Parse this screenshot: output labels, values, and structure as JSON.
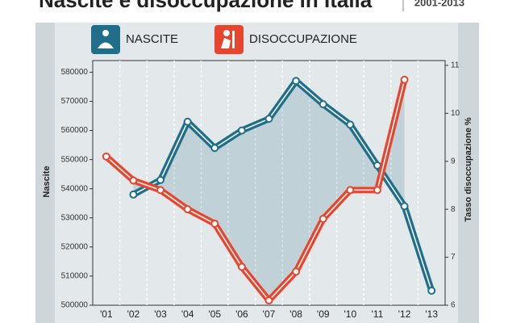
{
  "chart_data": {
    "type": "line",
    "title": "Nascite e disoccupazione in Italia",
    "subtitle": "2001-2013",
    "y_label": "Nascite",
    "y2_label": "Tasso disoccupazione %",
    "categories": [
      "'01",
      "'02",
      "'03",
      "'04",
      "'05",
      "'06",
      "'07",
      "'08",
      "'09",
      "'10",
      "'11",
      "'12",
      "'13"
    ],
    "series": [
      {
        "name": "NASCITE",
        "color": "#1f6f8b",
        "values": [
          null,
          538000,
          543000,
          563000,
          554000,
          560000,
          564000,
          577000,
          569000,
          562000,
          548000,
          534000,
          505000
        ]
      },
      {
        "name": "DISOCCUPAZIONE",
        "color": "#e8452e",
        "axis": "y2",
        "values": [
          9.1,
          8.6,
          8.4,
          8.0,
          7.7,
          6.8,
          6.1,
          6.7,
          7.8,
          8.4,
          8.4,
          10.7,
          null
        ]
      }
    ],
    "ylim": [
      500000,
      584000
    ],
    "yticks": [
      500000,
      510000,
      520000,
      530000,
      540000,
      550000,
      560000,
      570000,
      580000
    ],
    "y2lim": [
      6,
      11.1
    ],
    "y2ticks": [
      6,
      7,
      8,
      9,
      10,
      11
    ],
    "grid": true
  }
}
